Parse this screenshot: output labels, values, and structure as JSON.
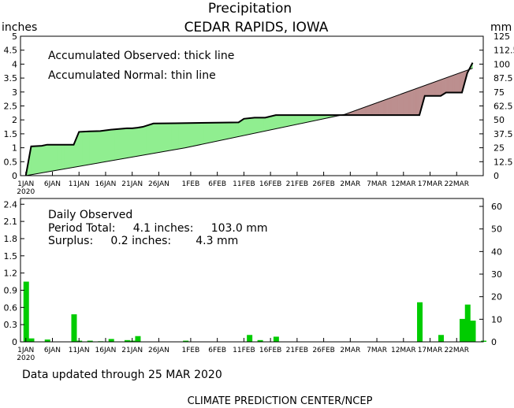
{
  "header": {
    "title": "Precipitation",
    "subtitle": "CEDAR RAPIDS, IOWA",
    "unit_left": "inches",
    "unit_right": "mm"
  },
  "footer": {
    "updated": "Data updated through 25 MAR 2020",
    "credit": "CLIMATE PREDICTION CENTER/NCEP"
  },
  "colors": {
    "surplus_fill": "#90ee90",
    "deficit_fill": "#bc8f8f",
    "daily_bar": "#00cc00",
    "line": "#000000"
  },
  "chart_data": [
    {
      "type": "area",
      "annotations": [
        "Accumulated Observed: thick line",
        "Accumulated Normal: thin line"
      ],
      "y_left_ticks": [
        "0",
        "0.5",
        "1",
        "1.5",
        "2",
        "2.5",
        "3",
        "3.5",
        "4",
        "4.5",
        "5"
      ],
      "y_right_ticks": [
        "0",
        "12.5",
        "25",
        "37.5",
        "50",
        "62.5",
        "75",
        "87.5",
        "100",
        "112.5",
        "125"
      ],
      "x_ticks": [
        "1JAN",
        "6JAN",
        "11JAN",
        "16JAN",
        "21JAN",
        "26JAN",
        "1FEB",
        "6FEB",
        "11FEB",
        "16FEB",
        "21FEB",
        "26FEB",
        "2MAR",
        "7MAR",
        "12MAR",
        "17MAR",
        "22MAR"
      ],
      "x_sub_label": "2020",
      "ylim": [
        0,
        5
      ],
      "xlim_days": [
        -1,
        86
      ],
      "series": [
        {
          "name": "Accumulated Observed",
          "x": [
            0,
            1,
            3,
            4,
            9,
            10,
            12,
            14,
            16,
            19,
            20,
            21,
            22,
            24,
            28,
            40,
            41,
            43,
            45,
            47,
            54,
            74,
            75,
            78,
            79,
            82,
            83,
            84
          ],
          "y": [
            0,
            1.05,
            1.07,
            1.11,
            1.11,
            1.57,
            1.59,
            1.6,
            1.65,
            1.7,
            1.7,
            1.72,
            1.75,
            1.87,
            1.88,
            1.91,
            2.04,
            2.08,
            2.08,
            2.17,
            2.17,
            2.17,
            2.86,
            2.86,
            2.98,
            2.98,
            3.68,
            4.05
          ]
        },
        {
          "name": "Accumulated Normal",
          "x": [
            0,
            30,
            60,
            84
          ],
          "y": [
            0,
            1.0,
            2.2,
            3.85
          ]
        }
      ]
    },
    {
      "type": "bar",
      "annotations": [
        "Daily Observed",
        "Period Total:     4.1 inches:     103.0 mm",
        "Surplus:     0.2 inches:       4.3 mm"
      ],
      "y_left_ticks": [
        "0",
        "0.3",
        "0.6",
        "0.9",
        "1.2",
        "1.5",
        "1.8",
        "2.1",
        "2.4"
      ],
      "y_right_ticks": [
        "0",
        "10",
        "20",
        "30",
        "40",
        "50",
        "60"
      ],
      "x_ticks": [
        "1JAN",
        "6JAN",
        "11JAN",
        "16JAN",
        "21JAN",
        "26JAN",
        "1FEB",
        "6FEB",
        "11FEB",
        "16FEB",
        "21FEB",
        "26FEB",
        "2MAR",
        "7MAR",
        "12MAR",
        "17MAR",
        "22MAR"
      ],
      "x_sub_label": "2020",
      "ylim": [
        0,
        2.5
      ],
      "x": [
        0,
        1,
        4,
        9,
        10,
        12,
        14,
        16,
        19,
        20,
        21,
        30,
        42,
        44,
        47,
        74,
        78,
        82,
        83,
        84,
        86
      ],
      "values": [
        1.05,
        0.06,
        0.04,
        0.48,
        0.02,
        0.02,
        0.01,
        0.05,
        0.03,
        0.02,
        0.1,
        0.02,
        0.12,
        0.03,
        0.09,
        0.69,
        0.12,
        0.4,
        0.65,
        0.37,
        0.02
      ]
    }
  ]
}
